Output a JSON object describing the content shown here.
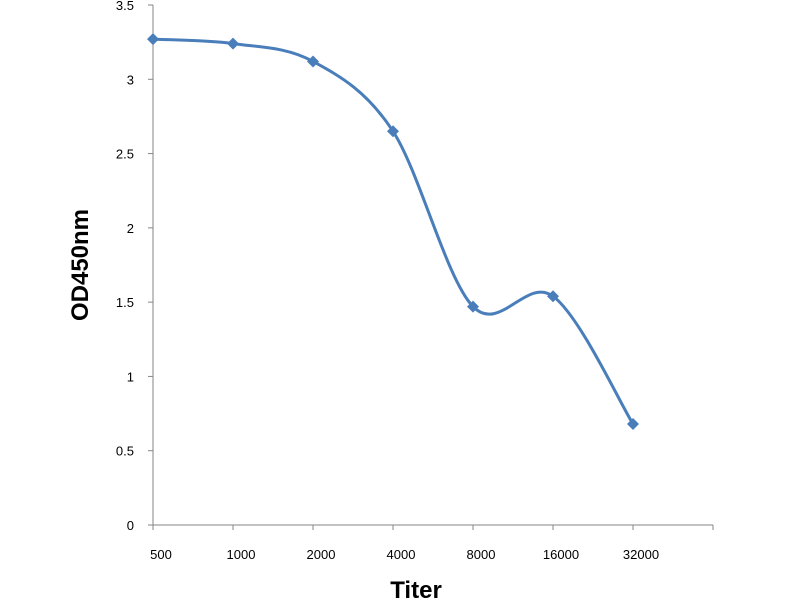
{
  "chart_data": {
    "type": "line",
    "title": "",
    "xlabel": "Titer",
    "ylabel": "OD450nm",
    "categories": [
      "500",
      "1000",
      "2000",
      "4000",
      "8000",
      "16000",
      "32000"
    ],
    "series": [
      {
        "values": [
          3.27,
          3.24,
          3.12,
          2.65,
          1.47,
          1.54,
          0.68
        ]
      }
    ],
    "ylim": [
      0,
      3.5
    ],
    "yticks": [
      "0",
      "0.5",
      "1",
      "1.5",
      "2",
      "2.5",
      "3",
      "3.5"
    ],
    "grid": false,
    "legend": "none",
    "smooth": true,
    "line_color": "#4a7ebb",
    "marker": "diamond"
  }
}
